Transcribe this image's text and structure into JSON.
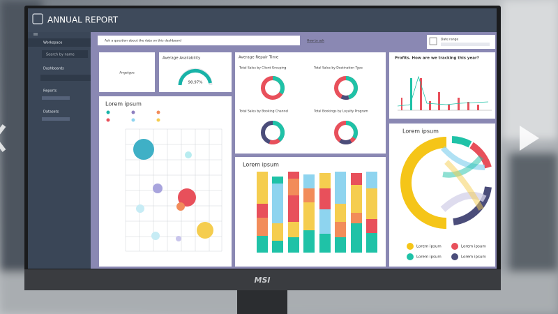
{
  "header": {
    "title": "ANNUAL REPORT"
  },
  "sidebar": {
    "items": [
      "Workspace",
      "Search by name",
      "Dashboards",
      "Reports",
      "Datasets"
    ]
  },
  "toolbar": {
    "question": "Ask a question about the data on this dashboard",
    "help": "How to ask",
    "date_label": "Date range"
  },
  "cards": {
    "tile": "Angetype",
    "gauge": {
      "title": "Average Availability",
      "value": "98.97%"
    },
    "repair": {
      "title": "Average Repair Time",
      "charts": [
        "Total Sales by Client Grouping",
        "Total Sales by Destination Type",
        "Total Sales by Booking Channel",
        "Total Bookings by Loyalty Program"
      ]
    },
    "profits": {
      "title": "Profits. How are we tracking this year?"
    },
    "bubble": {
      "title": "Lorem ipsum"
    },
    "stacked": {
      "title": "Lorem ipsum"
    },
    "chord": {
      "title": "Lorem ipsum",
      "legend": [
        "Lorem ipsum",
        "Lorem ipsum",
        "Lorem ipsum",
        "Lorem ipsum"
      ]
    }
  },
  "brand": "MSI"
}
